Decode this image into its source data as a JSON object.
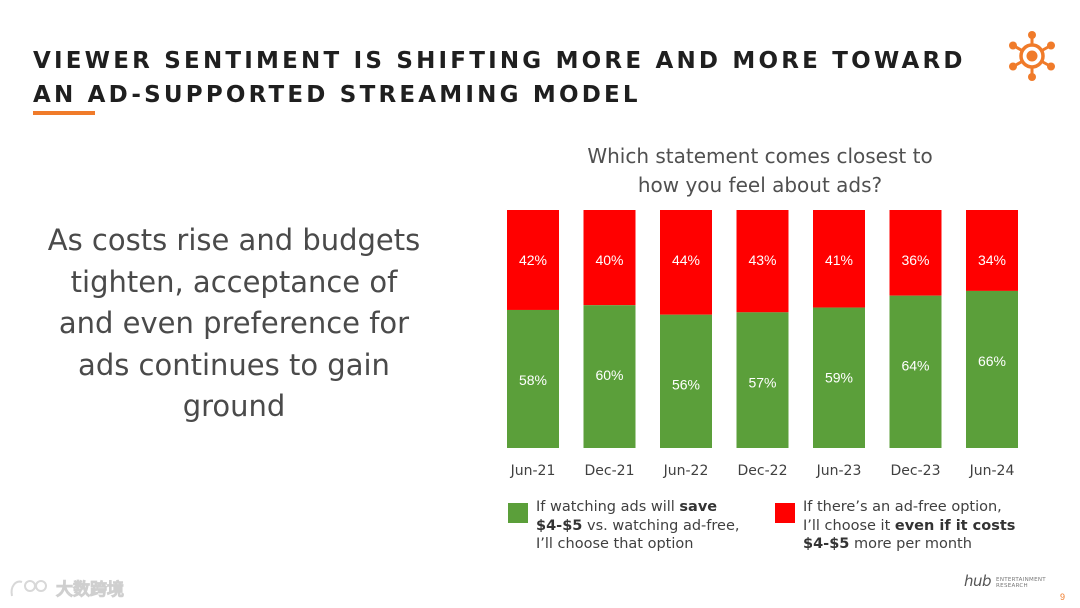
{
  "title": {
    "line1": "VIEWER SENTIMENT IS SHIFTING MORE AND MORE TOWARD",
    "line2": "AN AD-SUPPORTED STREAMING MODEL"
  },
  "left_text": "As costs rise and budgets tighten, acceptance of and even preference for ads continues to gain ground",
  "chart_title": {
    "line1": "Which statement comes closest to",
    "line2": "how you feel about ads?"
  },
  "legend": {
    "green": {
      "line1_pre": "If watching ads will ",
      "line1_bold": "save",
      "line2_bold": "$4-$5",
      "line2_post": " vs. watching ad-free,",
      "line3": "I’ll choose that option"
    },
    "red": {
      "line1": "If there’s an ad-free option,",
      "line2_pre": "I’ll choose it ",
      "line2_bold": "even if it costs",
      "line3_bold": "$4-$5",
      "line3_post": " more per month"
    }
  },
  "colors": {
    "green": "#5b9f3a",
    "red": "#ff0000",
    "accent": "#f07b2a"
  },
  "chart_data": {
    "type": "bar",
    "stacked": true,
    "title": "Which statement comes closest to how you feel about ads?",
    "categories": [
      "Jun-21",
      "Dec-21",
      "Jun-22",
      "Dec-22",
      "Jun-23",
      "Dec-23",
      "Jun-24"
    ],
    "series": [
      {
        "name": "If watching ads will save $4-$5 vs. watching ad-free, I’ll choose that option",
        "color": "#5b9f3a",
        "values": [
          58,
          60,
          56,
          57,
          59,
          64,
          66
        ],
        "labels": [
          "58%",
          "60%",
          "56%",
          "57%",
          "59%",
          "64%",
          "66%"
        ]
      },
      {
        "name": "If there’s an ad-free option, I’ll choose it even if it costs $4-$5 more per month",
        "color": "#ff0000",
        "values": [
          42,
          40,
          44,
          43,
          41,
          36,
          34
        ],
        "labels": [
          "42%",
          "40%",
          "44%",
          "43%",
          "41%",
          "36%",
          "34%"
        ]
      }
    ],
    "ylim": [
      0,
      100
    ],
    "xlabel": "",
    "ylabel": "",
    "legend_position": "bottom"
  },
  "footer": {
    "logo_word": "hub",
    "logo_sub1": "ENTERTAINMENT",
    "logo_sub2": "RESEARCH",
    "page_number": "9"
  },
  "watermark": {
    "text": "大数跨境"
  }
}
